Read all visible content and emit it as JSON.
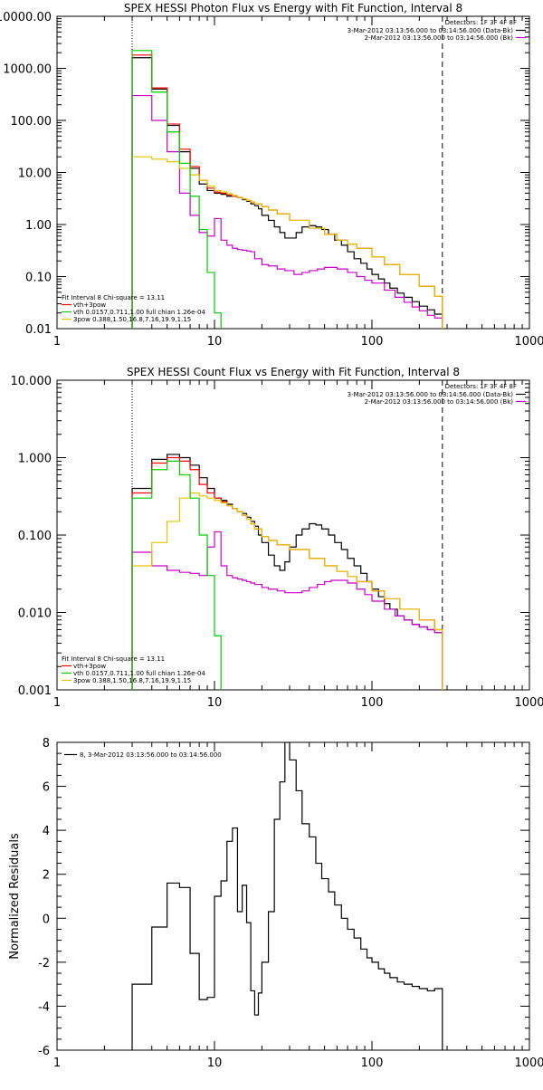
{
  "chart_data": [
    {
      "type": "line",
      "title": "SPEX HESSI Photon Flux vs Energy with Fit Function, Interval 8",
      "xlabel": "",
      "ylabel": "",
      "xscale": "log",
      "yscale": "log",
      "xlim": [
        1,
        1000
      ],
      "ylim": [
        0.01,
        10000
      ],
      "xticklabels": [
        "1",
        "10",
        "100",
        "1000"
      ],
      "yticklabels": [
        "0.01",
        "0.10",
        "1.00",
        "10.00",
        "100.00",
        "1000.00",
        "10000.00"
      ],
      "vlines": {
        "dotted": 3,
        "dashed": 280
      },
      "detectors_text": "Detectors: 1F 3F 4F 8F",
      "legend_top_right": [
        {
          "text": "3-Mar-2012 03:13:56.000 to 03:14:56.000 (Data-Bk)",
          "color": "#000000"
        },
        {
          "text": "2-Mar-2012 03:13:56.000 to 03:14:56.000 (Bk)",
          "color": "#cc00cc"
        }
      ],
      "legend_bottom_left": [
        {
          "text": "Fit Interval 8   Chi-square = 13.11",
          "color": null
        },
        {
          "text": "vth+3pow",
          "color": "#ff0000"
        },
        {
          "text": "vth 0.0157,0.711,1.00  full chian 1.26e-04",
          "color": "#00cc00"
        },
        {
          "text": "3pow 0.388,1.50,16.8,7.16,19.9,1.15",
          "color": "#e6c200"
        }
      ],
      "series": [
        {
          "name": "Data-Bk",
          "color": "#000000",
          "step": true,
          "x": [
            3,
            4,
            5,
            6,
            7,
            8,
            9,
            10,
            11,
            12,
            13,
            14,
            15,
            16,
            17,
            18,
            19,
            20,
            22,
            24,
            26,
            28,
            30,
            33,
            36,
            40,
            44,
            48,
            53,
            58,
            64,
            70,
            77,
            85,
            93,
            100,
            110,
            120,
            130,
            145,
            160,
            180,
            200,
            225,
            250,
            280
          ],
          "y": [
            1600,
            400,
            80,
            25,
            12,
            6,
            4.5,
            4,
            3.8,
            3.5,
            3.5,
            3.3,
            3.0,
            2.8,
            2.5,
            2.3,
            2.0,
            1.5,
            1.2,
            0.9,
            0.7,
            0.55,
            0.55,
            0.7,
            0.9,
            0.95,
            0.9,
            0.8,
            0.65,
            0.5,
            0.4,
            0.3,
            0.22,
            0.18,
            0.14,
            0.11,
            0.09,
            0.075,
            0.06,
            0.048,
            0.04,
            0.033,
            0.027,
            0.023,
            0.019,
            0.016
          ]
        },
        {
          "name": "vth+3pow",
          "color": "#ff0000",
          "step": true,
          "x": [
            3,
            4,
            5,
            6,
            7,
            8,
            9,
            10,
            11,
            12,
            13,
            14,
            15,
            16,
            17,
            18,
            20,
            22,
            25,
            30,
            40,
            50,
            60,
            70,
            80,
            100,
            120,
            150,
            200,
            250,
            280
          ],
          "y": [
            1800,
            420,
            85,
            28,
            13,
            7,
            5,
            4.2,
            4.0,
            3.7,
            3.5,
            3.3,
            3.1,
            2.9,
            2.7,
            2.5,
            2.2,
            1.9,
            1.6,
            1.2,
            0.85,
            0.65,
            0.5,
            0.42,
            0.35,
            0.24,
            0.17,
            0.11,
            0.065,
            0.042,
            0.035
          ]
        },
        {
          "name": "vth",
          "color": "#00cc00",
          "step": true,
          "x": [
            3,
            4,
            5,
            6,
            7,
            8,
            9,
            10,
            11
          ],
          "y": [
            2200,
            350,
            60,
            15,
            3.5,
            0.8,
            0.12,
            0.02,
            0.005
          ]
        },
        {
          "name": "3pow",
          "color": "#e6c200",
          "step": true,
          "x": [
            3,
            4,
            5,
            6,
            7,
            8,
            9,
            10,
            11,
            12,
            13,
            14,
            15,
            16,
            17,
            18,
            20,
            22,
            25,
            30,
            40,
            50,
            60,
            70,
            80,
            100,
            120,
            150,
            200,
            250,
            280
          ],
          "y": [
            20,
            18,
            16,
            12,
            9,
            7,
            5.5,
            4.5,
            4.2,
            3.9,
            3.6,
            3.3,
            3.1,
            2.9,
            2.7,
            2.5,
            2.2,
            1.9,
            1.6,
            1.2,
            0.85,
            0.65,
            0.5,
            0.42,
            0.35,
            0.24,
            0.17,
            0.11,
            0.065,
            0.042,
            0.035
          ]
        },
        {
          "name": "Bk",
          "color": "#cc00cc",
          "step": true,
          "x": [
            3,
            4,
            5,
            6,
            7,
            8,
            9,
            10,
            11,
            12,
            13,
            14,
            15,
            16,
            17,
            18,
            20,
            22,
            25,
            28,
            32,
            36,
            40,
            45,
            50,
            55,
            60,
            70,
            80,
            90,
            100,
            120,
            140,
            160,
            180,
            200,
            225,
            250,
            280
          ],
          "y": [
            300,
            100,
            25,
            4,
            1.5,
            0.7,
            0.6,
            1.3,
            0.5,
            0.4,
            0.35,
            0.33,
            0.32,
            0.31,
            0.3,
            0.22,
            0.17,
            0.16,
            0.14,
            0.13,
            0.11,
            0.12,
            0.13,
            0.14,
            0.15,
            0.15,
            0.14,
            0.12,
            0.1,
            0.085,
            0.075,
            0.055,
            0.04,
            0.032,
            0.026,
            0.022,
            0.018,
            0.016,
            0.014
          ]
        }
      ]
    },
    {
      "type": "line",
      "title": "SPEX HESSI Count Flux vs Energy with Fit Function, Interval 8",
      "xlabel": "",
      "ylabel": "",
      "xscale": "log",
      "yscale": "log",
      "xlim": [
        1,
        1000
      ],
      "ylim": [
        0.001,
        10
      ],
      "xticklabels": [
        "1",
        "10",
        "100",
        "1000"
      ],
      "yticklabels": [
        "0.001",
        "0.010",
        "0.100",
        "1.000",
        "10.000"
      ],
      "vlines": {
        "dotted": 3,
        "dashed": 280
      },
      "detectors_text": "Detectors: 1F 3F 4F 8F",
      "legend_top_right": [
        {
          "text": "3-Mar-2012 03:13:56.000 to 03:14:56.000 (Data-Bk)",
          "color": "#000000"
        },
        {
          "text": "2-Mar-2012 03:13:56.000 to 03:14:56.000 (Bk)",
          "color": "#cc00cc"
        }
      ],
      "legend_bottom_left": [
        {
          "text": "Fit Interval 8   Chi-square = 13.11",
          "color": null
        },
        {
          "text": "vth+3pow",
          "color": "#ff0000"
        },
        {
          "text": "vth 0.0157,0.711,1.00  full chian 1.26e-04",
          "color": "#00cc00"
        },
        {
          "text": "3pow 0.388,1.50,16.8,7.16,19.9,1.15",
          "color": "#e6c200"
        }
      ],
      "series": [
        {
          "name": "Data-Bk",
          "color": "#000000",
          "step": true,
          "x": [
            3,
            4,
            5,
            6,
            7,
            8,
            9,
            10,
            11,
            12,
            13,
            14,
            15,
            16,
            17,
            18,
            19,
            20,
            22,
            24,
            26,
            28,
            30,
            33,
            36,
            40,
            44,
            48,
            53,
            58,
            64,
            70,
            77,
            85,
            93,
            100,
            110,
            120,
            130,
            145,
            160,
            180,
            200,
            225,
            250,
            280
          ],
          "y": [
            0.4,
            0.95,
            1.1,
            1.0,
            0.8,
            0.55,
            0.4,
            0.3,
            0.28,
            0.25,
            0.22,
            0.2,
            0.19,
            0.17,
            0.15,
            0.13,
            0.1,
            0.08,
            0.055,
            0.04,
            0.035,
            0.045,
            0.07,
            0.1,
            0.12,
            0.14,
            0.135,
            0.12,
            0.1,
            0.08,
            0.065,
            0.05,
            0.04,
            0.032,
            0.025,
            0.02,
            0.016,
            0.013,
            0.011,
            0.009,
            0.008,
            0.007,
            0.0065,
            0.006,
            0.0055,
            0.005
          ]
        },
        {
          "name": "vth+3pow",
          "color": "#ff0000",
          "step": true,
          "x": [
            3,
            4,
            5,
            6,
            7,
            8,
            9,
            10,
            11,
            12,
            13,
            14,
            15,
            16,
            17,
            18,
            20,
            22,
            25,
            30,
            40,
            50,
            60,
            70,
            80,
            100,
            120,
            150,
            200,
            250,
            280
          ],
          "y": [
            0.35,
            0.85,
            1.0,
            0.9,
            0.7,
            0.45,
            0.35,
            0.3,
            0.27,
            0.24,
            0.22,
            0.2,
            0.18,
            0.16,
            0.14,
            0.12,
            0.095,
            0.085,
            0.075,
            0.065,
            0.05,
            0.04,
            0.034,
            0.029,
            0.025,
            0.019,
            0.015,
            0.011,
            0.008,
            0.006,
            0.005
          ]
        },
        {
          "name": "vth",
          "color": "#00cc00",
          "step": true,
          "x": [
            3,
            4,
            5,
            6,
            7,
            8,
            9,
            10,
            11
          ],
          "y": [
            0.3,
            0.7,
            0.9,
            0.6,
            0.3,
            0.1,
            0.03,
            0.005,
            0.0005
          ]
        },
        {
          "name": "3pow",
          "color": "#e6c200",
          "step": true,
          "x": [
            3,
            4,
            5,
            6,
            7,
            8,
            9,
            10,
            11,
            12,
            13,
            14,
            15,
            16,
            17,
            18,
            20,
            22,
            25,
            30,
            40,
            50,
            60,
            70,
            80,
            100,
            120,
            150,
            200,
            250,
            280
          ],
          "y": [
            0.04,
            0.08,
            0.15,
            0.3,
            0.35,
            0.32,
            0.3,
            0.28,
            0.26,
            0.24,
            0.22,
            0.2,
            0.18,
            0.16,
            0.14,
            0.12,
            0.095,
            0.085,
            0.075,
            0.065,
            0.05,
            0.04,
            0.034,
            0.029,
            0.025,
            0.019,
            0.015,
            0.011,
            0.008,
            0.006,
            0.005
          ]
        },
        {
          "name": "Bk",
          "color": "#cc00cc",
          "step": true,
          "x": [
            3,
            4,
            5,
            6,
            7,
            8,
            9,
            10,
            11,
            12,
            13,
            14,
            15,
            16,
            17,
            18,
            20,
            22,
            25,
            28,
            32,
            36,
            40,
            45,
            50,
            55,
            60,
            70,
            80,
            90,
            100,
            120,
            140,
            160,
            180,
            200,
            225,
            250,
            280
          ],
          "y": [
            0.06,
            0.04,
            0.035,
            0.033,
            0.032,
            0.03,
            0.07,
            0.11,
            0.04,
            0.03,
            0.028,
            0.027,
            0.026,
            0.025,
            0.024,
            0.023,
            0.021,
            0.02,
            0.019,
            0.018,
            0.018,
            0.019,
            0.021,
            0.023,
            0.025,
            0.026,
            0.026,
            0.024,
            0.02,
            0.017,
            0.014,
            0.011,
            0.009,
            0.008,
            0.007,
            0.0065,
            0.006,
            0.0055,
            0.005
          ]
        }
      ]
    },
    {
      "type": "line",
      "title": "",
      "xlabel": "",
      "ylabel": "Normalized Residuals",
      "xscale": "log",
      "yscale": "linear",
      "xlim": [
        1,
        1000
      ],
      "ylim": [
        -6,
        8
      ],
      "xticklabels": [
        "1",
        "10",
        "100",
        "1000"
      ],
      "yticklabels": [
        "-6",
        "-4",
        "-2",
        "0",
        "2",
        "4",
        "6",
        "8"
      ],
      "legend_top_left": [
        {
          "text": "8,  3-Mar-2012 03:13:56.000 to 03:14:56.000",
          "color": "#000000"
        }
      ],
      "series": [
        {
          "name": "",
          "color": "#000000",
          "step": true,
          "x": [
            3,
            4,
            5,
            6,
            7,
            8,
            9,
            10,
            11,
            12,
            13,
            14,
            15,
            16,
            17,
            18,
            19,
            20,
            22,
            24,
            26,
            28,
            30,
            33,
            36,
            40,
            44,
            48,
            53,
            58,
            64,
            70,
            77,
            85,
            93,
            100,
            110,
            120,
            130,
            145,
            160,
            180,
            200,
            225,
            250,
            280
          ],
          "y": [
            -3.0,
            -0.4,
            1.6,
            1.4,
            -1.6,
            -3.7,
            -3.6,
            1.0,
            1.7,
            3.5,
            4.1,
            0.3,
            1.5,
            -0.2,
            -3.3,
            -4.4,
            -3.4,
            -2.0,
            0.3,
            4.5,
            6.2,
            8.0,
            7.2,
            5.8,
            4.3,
            3.7,
            2.5,
            1.8,
            1.2,
            0.6,
            0.0,
            -0.5,
            -0.9,
            -1.4,
            -1.8,
            -2.0,
            -2.3,
            -2.5,
            -2.7,
            -2.9,
            -3.0,
            -3.1,
            -3.2,
            -3.3,
            -3.2,
            -3.4
          ]
        }
      ]
    }
  ]
}
